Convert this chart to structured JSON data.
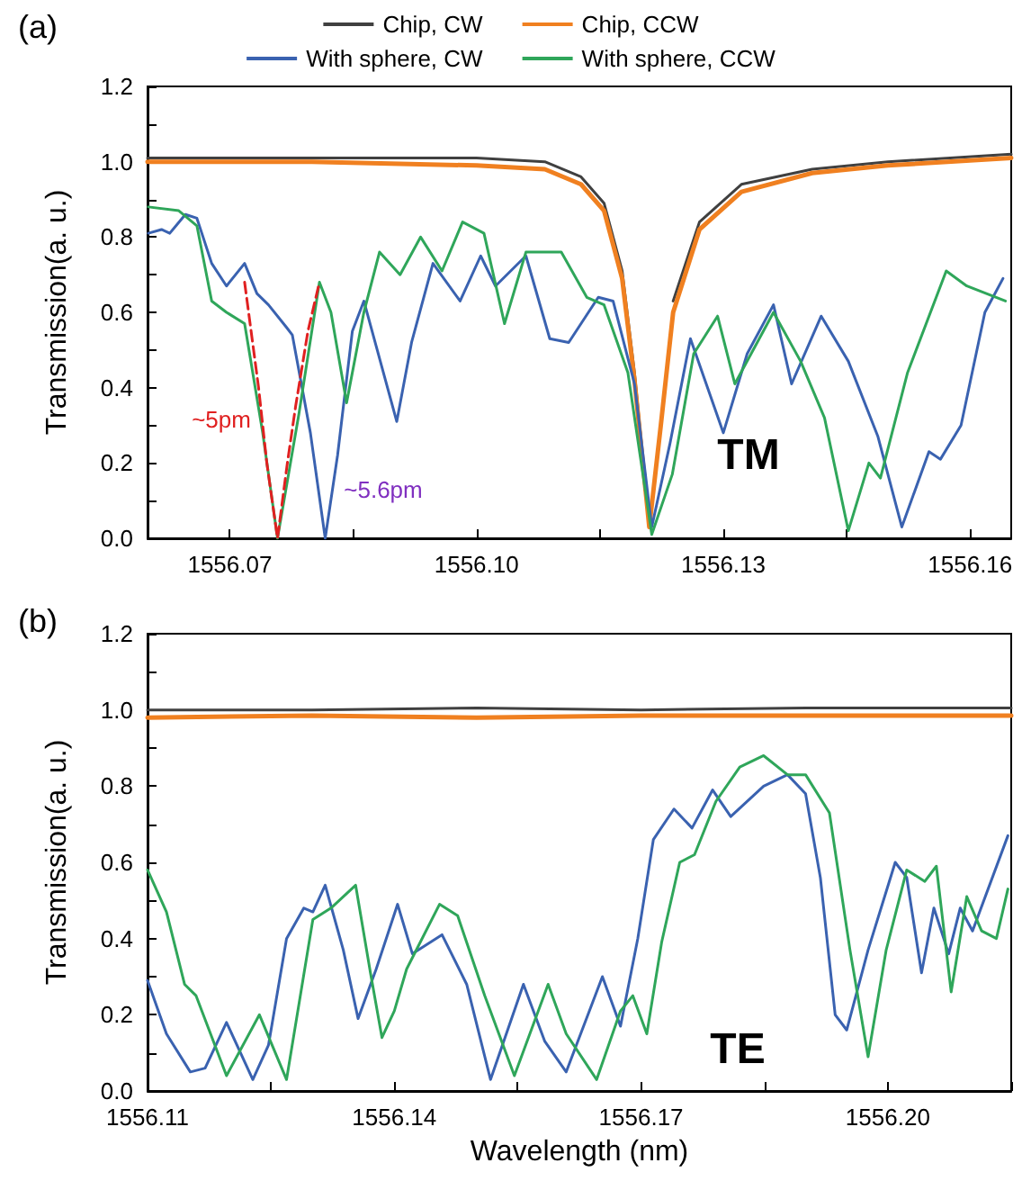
{
  "chart_data": [
    {
      "type": "line",
      "annotations": [
        "(a)",
        "~5pm",
        "~5.6pm",
        "TM"
      ],
      "ylabel": "Transmission(a. u.)",
      "xlim": [
        1556.06,
        1556.165
      ],
      "ylim": [
        0,
        1.2
      ],
      "xticks": [
        1556.07,
        {
          "value": 1556.085,
          "label": null
        },
        {
          "value": 1556.1,
          "label": "1556.10"
        },
        {
          "value": 1556.115,
          "label": null
        },
        1556.13,
        {
          "value": 1556.145,
          "label": null
        },
        {
          "value": 1556.16,
          "label": "1556.16"
        }
      ],
      "yticks": [
        {
          "value": 0,
          "label": "0.0"
        },
        {
          "value": 0.1,
          "label": null
        },
        {
          "value": 0.2,
          "label": "0.2"
        },
        {
          "value": 0.3,
          "label": null
        },
        {
          "value": 0.4,
          "label": "0.4"
        },
        {
          "value": 0.5,
          "label": null
        },
        {
          "value": 0.6,
          "label": "0.6"
        },
        {
          "value": 0.7,
          "label": null
        },
        {
          "value": 0.8,
          "label": "0.8"
        },
        {
          "value": 0.9,
          "label": null
        },
        {
          "value": 1,
          "label": "1.0"
        },
        {
          "value": 1.1,
          "label": null
        },
        {
          "value": 1.2,
          "label": "1.2"
        }
      ],
      "grid": false,
      "legend": "top",
      "marker": "none",
      "line_style": "solid",
      "series": [
        {
          "name": "Chip, CW",
          "color": "#404040",
          "x": [
            1556.06,
            1556.08,
            1556.1,
            1556.1083,
            1556.1127,
            1556.1155,
            1556.1177,
            1556.1192,
            1556.121,
            1556.1224,
            1556.1239,
            1556.1271,
            1556.1322,
            1556.1408,
            1556.15,
            1556.165
          ],
          "values": [
            1.01,
            1.01,
            1.01,
            1.0,
            0.96,
            0.89,
            0.71,
            0.44,
            0.04,
            null,
            0.63,
            0.84,
            0.94,
            0.98,
            1.0,
            1.02
          ]
        },
        {
          "name": "Chip, CCW",
          "color": "#f08020",
          "x": [
            1556.06,
            1556.08,
            1556.1,
            1556.1083,
            1556.1127,
            1556.1155,
            1556.1177,
            1556.1192,
            1556.121,
            1556.1224,
            1556.1239,
            1556.1271,
            1556.1322,
            1556.1408,
            1556.15,
            1556.165
          ],
          "values": [
            1.0,
            1.0,
            0.99,
            0.98,
            0.94,
            0.87,
            0.69,
            0.42,
            0.03,
            0.3,
            0.6,
            0.82,
            0.92,
            0.97,
            0.99,
            1.01
          ]
        },
        {
          "name": "With sphere, CW",
          "color": "#3a62b0",
          "x": [
            1556.0601,
            1556.0617,
            1556.0627,
            1556.0646,
            1556.066,
            1556.0678,
            1556.0696,
            1556.0718,
            1556.0733,
            1556.0747,
            1556.0769,
            1556.0776,
            1556.0798,
            1556.0816,
            1556.0831,
            1556.0849,
            1556.0863,
            1556.0878,
            1556.0903,
            1556.0921,
            1556.0947,
            1556.098,
            1556.1005,
            1556.1023,
            1556.106,
            1556.1089,
            1556.1112,
            1556.1148,
            1556.1166,
            1556.1192,
            1556.1213,
            1556.1235,
            1556.126,
            1556.13,
            1556.1329,
            1556.1361,
            1556.1383,
            1556.1419,
            1556.1452,
            1556.1488,
            1556.1517,
            1556.155,
            1556.1564,
            1556.1589,
            1556.1618,
            1556.164
          ],
          "values": [
            0.81,
            0.82,
            0.81,
            0.86,
            0.85,
            0.73,
            0.67,
            0.73,
            0.65,
            0.62,
            0.56,
            0.54,
            0.28,
            0.0,
            0.22,
            0.55,
            0.63,
            0.51,
            0.31,
            0.52,
            0.73,
            0.63,
            0.75,
            0.67,
            0.75,
            0.53,
            0.52,
            0.64,
            0.63,
            0.41,
            0.03,
            0.25,
            0.53,
            0.28,
            0.49,
            0.62,
            0.41,
            0.59,
            0.47,
            0.27,
            0.03,
            0.23,
            0.21,
            0.3,
            0.6,
            0.69
          ]
        },
        {
          "name": "With sphere, CCW",
          "color": "#2fa65a",
          "x": [
            1556.0601,
            1556.0638,
            1556.066,
            1556.0678,
            1556.0696,
            1556.0718,
            1556.074,
            1556.0758,
            1556.0784,
            1556.0809,
            1556.0823,
            1556.0842,
            1556.0863,
            1556.0882,
            1556.0907,
            1556.0932,
            1556.0958,
            1556.0983,
            1556.1009,
            1556.1034,
            1556.106,
            1556.1103,
            1556.1134,
            1556.1155,
            1556.1184,
            1556.1213,
            1556.1238,
            1556.1264,
            1556.1293,
            1556.1314,
            1556.1361,
            1556.1394,
            1556.1423,
            1556.1452,
            1556.1477,
            1556.1491,
            1556.1524,
            1556.1571,
            1556.1596,
            1556.1643
          ],
          "values": [
            0.88,
            0.87,
            0.83,
            0.63,
            0.6,
            0.57,
            0.28,
            0.0,
            0.33,
            0.68,
            0.6,
            0.36,
            0.6,
            0.76,
            0.7,
            0.8,
            0.71,
            0.84,
            0.81,
            0.57,
            0.76,
            0.76,
            0.64,
            0.62,
            0.44,
            0.01,
            0.17,
            0.49,
            0.59,
            0.41,
            0.6,
            0.47,
            0.32,
            0.02,
            0.2,
            0.16,
            0.44,
            0.71,
            0.67,
            0.63
          ]
        },
        {
          "color": "#e02020",
          "line_style": "dashed",
          "x": [
            1556.0718,
            1556.0735,
            1556.0745,
            1556.0758,
            1556.077,
            1556.078,
            1556.0795,
            1556.0809
          ],
          "values": [
            0.68,
            0.4,
            0.2,
            0.0,
            0.2,
            0.35,
            0.55,
            0.68
          ]
        }
      ]
    },
    {
      "type": "line",
      "annotations": [
        "(b)",
        "TE"
      ],
      "xlabel": "Wavelength (nm)",
      "ylabel": "Transmission(a. u.)",
      "xlim": [
        1556.11,
        1556.215
      ],
      "ylim": [
        0,
        1.2
      ],
      "xticks": [
        1556.11,
        {
          "value": 1556.125,
          "label": null
        },
        1556.14,
        {
          "value": 1556.155,
          "label": null
        },
        1556.17,
        {
          "value": 1556.185,
          "label": null
        },
        {
          "value": 1556.2,
          "label": "1556.20"
        },
        {
          "value": 1556.215,
          "label": null
        }
      ],
      "yticks": [
        {
          "value": 0,
          "label": "0.0"
        },
        {
          "value": 0.1,
          "label": null
        },
        {
          "value": 0.2,
          "label": "0.2"
        },
        {
          "value": 0.3,
          "label": null
        },
        {
          "value": 0.4,
          "label": "0.4"
        },
        {
          "value": 0.5,
          "label": null
        },
        {
          "value": 0.6,
          "label": "0.6"
        },
        {
          "value": 0.7,
          "label": null
        },
        {
          "value": 0.8,
          "label": "0.8"
        },
        {
          "value": 0.9,
          "label": null
        },
        {
          "value": 1,
          "label": "1.0"
        },
        {
          "value": 1.1,
          "label": null
        },
        {
          "value": 1.2,
          "label": "1.2"
        }
      ],
      "grid": false,
      "marker": "none",
      "line_style": "solid",
      "series": [
        {
          "color": "#404040",
          "x": [
            1556.11,
            1556.13,
            1556.15,
            1556.17,
            1556.19,
            1556.215
          ],
          "values": [
            1.0,
            1.0,
            1.005,
            1.0,
            1.005,
            1.005
          ]
        },
        {
          "color": "#f08020",
          "x": [
            1556.11,
            1556.13,
            1556.15,
            1556.17,
            1556.19,
            1556.215
          ],
          "values": [
            0.98,
            0.985,
            0.98,
            0.985,
            0.985,
            0.985
          ]
        },
        {
          "color": "#3a62b0",
          "x": [
            1556.11,
            1556.1123,
            1556.1152,
            1556.117,
            1556.1196,
            1556.1228,
            1556.1247,
            1556.1269,
            1556.129,
            1556.1301,
            1556.1316,
            1556.1338,
            1556.1356,
            1556.1378,
            1556.1404,
            1556.1422,
            1556.1458,
            1556.1488,
            1556.1517,
            1556.1557,
            1556.1583,
            1556.1609,
            1556.1653,
            1556.1675,
            1556.1696,
            1556.1715,
            1556.174,
            1556.1762,
            1556.1787,
            1556.1809,
            1556.1849,
            1556.1878,
            1556.19,
            1556.1918,
            1556.1936,
            1556.195,
            1556.1976,
            1556.2009,
            1556.2023,
            1556.2041,
            1556.2056,
            1556.2074,
            1556.2088,
            1556.2103,
            1556.2146
          ],
          "values": [
            0.29,
            0.15,
            0.05,
            0.06,
            0.18,
            0.03,
            0.12,
            0.4,
            0.48,
            0.47,
            0.54,
            0.37,
            0.19,
            0.32,
            0.49,
            0.36,
            0.41,
            0.28,
            0.03,
            0.28,
            0.13,
            0.05,
            0.3,
            0.17,
            0.4,
            0.66,
            0.74,
            0.69,
            0.79,
            0.72,
            0.8,
            0.83,
            0.78,
            0.56,
            0.2,
            0.16,
            0.37,
            0.6,
            0.56,
            0.31,
            0.48,
            0.36,
            0.48,
            0.42,
            0.67
          ]
        },
        {
          "color": "#2fa65a",
          "x": [
            1556.11,
            1556.1123,
            1556.1145,
            1556.1159,
            1556.1196,
            1556.1236,
            1556.1269,
            1556.1301,
            1556.1323,
            1556.1353,
            1556.1371,
            1556.1385,
            1556.14,
            1556.1415,
            1556.1455,
            1556.1477,
            1556.151,
            1556.1546,
            1556.1587,
            1556.1609,
            1556.1646,
            1556.1675,
            1556.169,
            1556.1707,
            1556.1725,
            1556.1747,
            1556.1765,
            1556.1791,
            1556.182,
            1556.1849,
            1556.1878,
            1556.19,
            1556.1929,
            1556.1954,
            1556.1976,
            1556.1998,
            1556.2023,
            1556.2045,
            1556.2059,
            1556.2077,
            1556.2096,
            1556.2114,
            1556.2132,
            1556.2146
          ],
          "values": [
            0.58,
            0.47,
            0.28,
            0.25,
            0.04,
            0.2,
            0.03,
            0.45,
            0.48,
            0.54,
            0.31,
            0.14,
            0.21,
            0.32,
            0.49,
            0.46,
            0.25,
            0.04,
            0.28,
            0.15,
            0.03,
            0.21,
            0.25,
            0.15,
            0.39,
            0.6,
            0.62,
            0.76,
            0.85,
            0.88,
            0.83,
            0.83,
            0.73,
            0.37,
            0.09,
            0.37,
            0.58,
            0.55,
            0.59,
            0.26,
            0.51,
            0.42,
            0.4,
            0.53
          ]
        }
      ]
    }
  ]
}
